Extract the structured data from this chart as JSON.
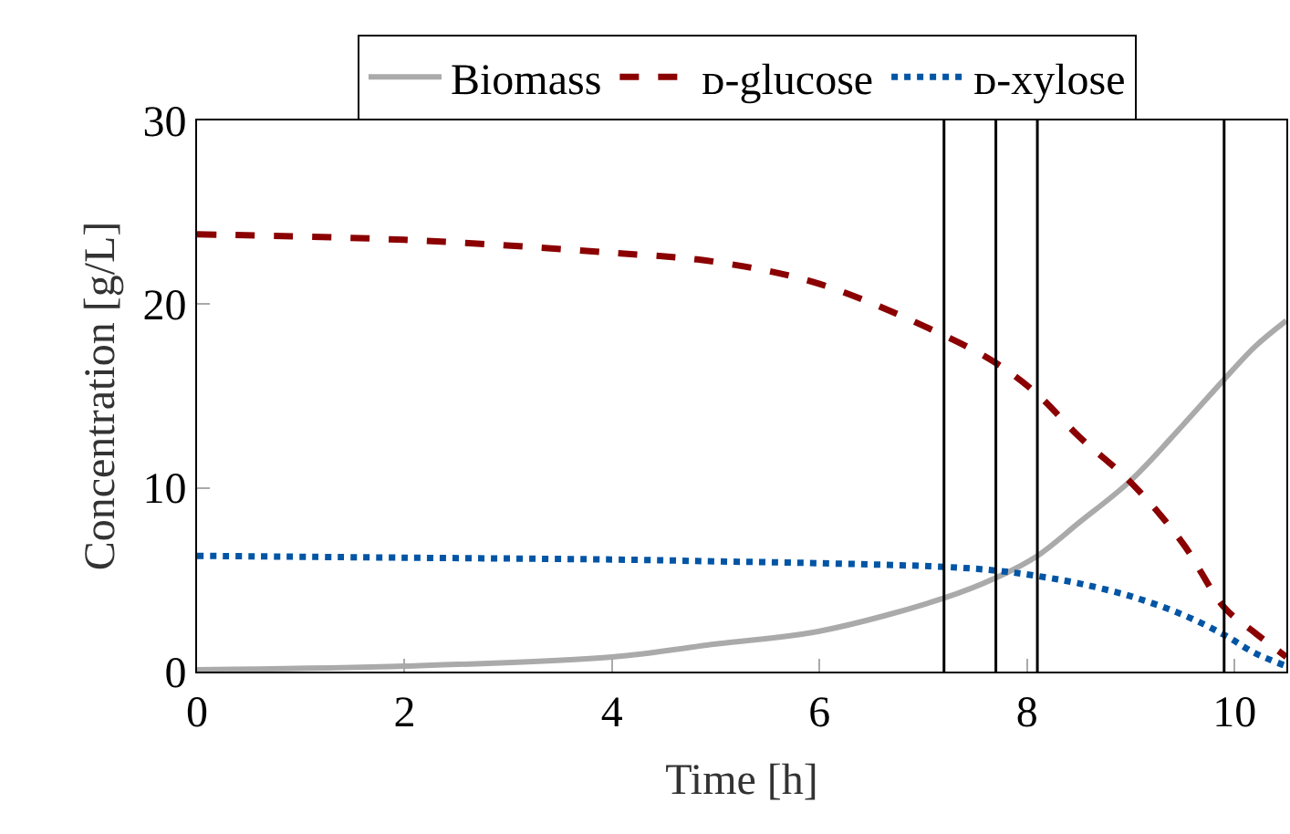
{
  "chart_data": {
    "type": "line",
    "xlabel": "Time [h]",
    "ylabel": "Concentration [g/L]",
    "x": [
      0,
      2,
      4,
      5,
      6,
      7.2,
      7.7,
      8.1,
      8.5,
      9,
      9.5,
      9.9,
      10.2,
      10.5
    ],
    "series": [
      {
        "name": "Biomass",
        "color": "#aaaaaa",
        "line_style": "solid",
        "values": [
          0.1,
          0.3,
          0.8,
          1.5,
          2.2,
          4.0,
          5.1,
          6.3,
          8.1,
          10.4,
          13.4,
          15.9,
          17.7,
          19.1
        ]
      },
      {
        "name": "ᴅ-glucose",
        "color": "#8b0000",
        "line_style": "dashed",
        "values": [
          23.8,
          23.5,
          22.8,
          22.3,
          21.1,
          18.3,
          16.8,
          15.1,
          12.8,
          10.3,
          7.0,
          3.5,
          2.1,
          0.8
        ]
      },
      {
        "name": "ᴅ-xylose",
        "color": "#0055a5",
        "line_style": "dotted",
        "values": [
          6.3,
          6.2,
          6.1,
          6.0,
          5.9,
          5.7,
          5.5,
          5.2,
          4.8,
          4.1,
          3.1,
          2.0,
          1.0,
          0.3
        ]
      }
    ],
    "xlim": [
      0,
      10.5
    ],
    "xticks": [
      0,
      2,
      4,
      6,
      8,
      10
    ],
    "ylim": [
      0,
      30
    ],
    "yticks": [
      0,
      10,
      20,
      30
    ],
    "ref_lines": [
      {
        "axis": "x",
        "value": 7.2,
        "color": "#000000"
      },
      {
        "axis": "x",
        "value": 7.7,
        "color": "#000000"
      },
      {
        "axis": "x",
        "value": 8.1,
        "color": "#000000"
      },
      {
        "axis": "x",
        "value": 9.9,
        "color": "#000000"
      }
    ],
    "grid": false,
    "legend": "top",
    "marker": "none"
  }
}
